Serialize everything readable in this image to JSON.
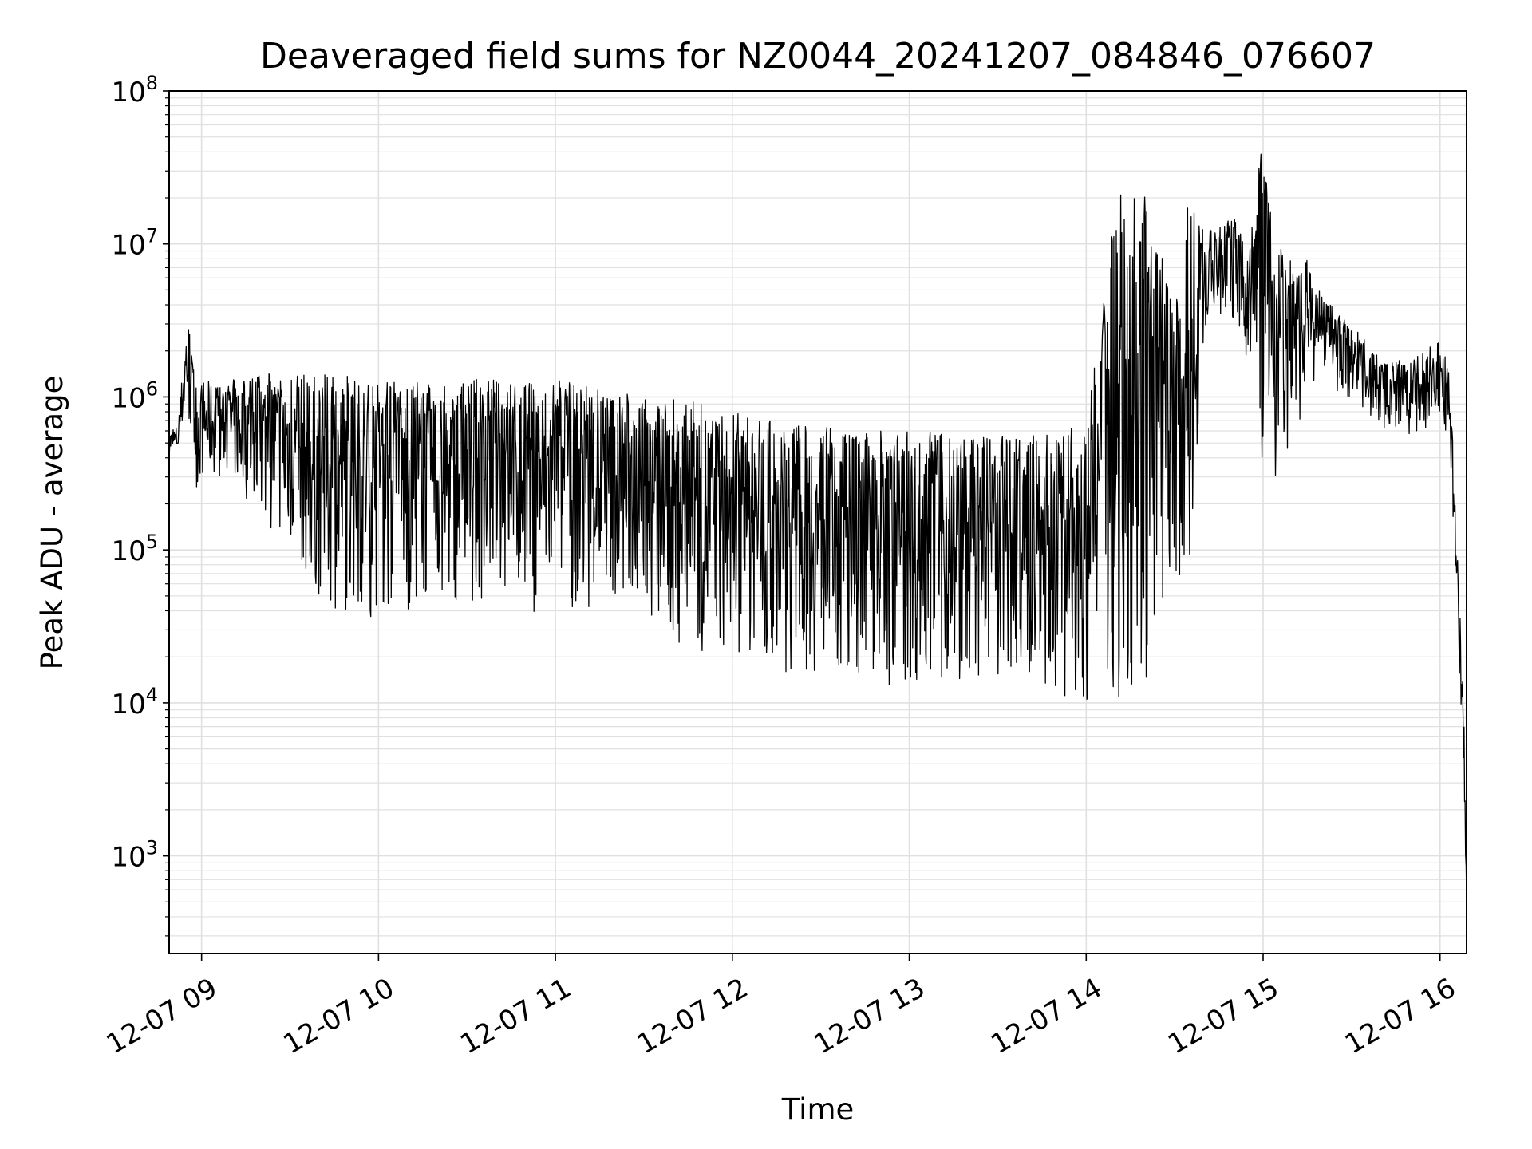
{
  "chart_data": {
    "type": "line",
    "title": "Deaveraged field sums for NZ0044_20241207_084846_076607",
    "xlabel": "Time",
    "ylabel": "Peak ADU - average",
    "yscale": "log",
    "xlim": [
      "2024-12-07T08:49:00",
      "2024-12-07T16:09:00"
    ],
    "ylim": [
      230,
      100000000
    ],
    "grid": true,
    "line_color": "#000000",
    "grid_color": "#e0e0e0",
    "x_ticks": [
      {
        "value": "2024-12-07T09:00:00",
        "label": "12-07 09"
      },
      {
        "value": "2024-12-07T10:00:00",
        "label": "12-07 10"
      },
      {
        "value": "2024-12-07T11:00:00",
        "label": "12-07 11"
      },
      {
        "value": "2024-12-07T12:00:00",
        "label": "12-07 12"
      },
      {
        "value": "2024-12-07T13:00:00",
        "label": "12-07 13"
      },
      {
        "value": "2024-12-07T14:00:00",
        "label": "12-07 14"
      },
      {
        "value": "2024-12-07T15:00:00",
        "label": "12-07 15"
      },
      {
        "value": "2024-12-07T16:00:00",
        "label": "12-07 16"
      }
    ],
    "y_ticks": [
      {
        "value": 1000,
        "base": "10",
        "exp": "3"
      },
      {
        "value": 10000,
        "base": "10",
        "exp": "4"
      },
      {
        "value": 100000,
        "base": "10",
        "exp": "5"
      },
      {
        "value": 1000000,
        "base": "10",
        "exp": "6"
      },
      {
        "value": 10000000,
        "base": "10",
        "exp": "7"
      },
      {
        "value": 100000000,
        "base": "10",
        "exp": "8"
      }
    ],
    "series": [
      {
        "x": [
          "08:49",
          "08:52",
          "08:55",
          "08:58",
          "09:01",
          "09:05",
          "09:10",
          "09:20",
          "09:30",
          "09:40",
          "09:50",
          "10:00",
          "10:10",
          "10:20",
          "10:30",
          "10:40",
          "10:50",
          "11:00",
          "11:10",
          "11:20",
          "11:30",
          "11:40",
          "11:50",
          "12:00",
          "12:10",
          "12:20",
          "12:30",
          "12:40",
          "12:50",
          "13:00",
          "13:10",
          "13:20",
          "13:30",
          "13:40",
          "13:50",
          "14:00",
          "14:10",
          "14:20",
          "14:30",
          "14:35",
          "14:40",
          "14:45",
          "14:50",
          "14:55",
          "15:00",
          "15:05",
          "15:10",
          "15:15",
          "15:20",
          "15:30",
          "15:40",
          "15:50",
          "16:00",
          "16:03",
          "16:05",
          "16:07",
          "16:08",
          "16:09"
        ],
        "high": [
          600000,
          650000,
          3500000,
          1300000,
          1300000,
          1200000,
          1300000,
          1500000,
          1500000,
          1400000,
          1400000,
          1300000,
          1300000,
          1200000,
          1300000,
          1300000,
          1300000,
          1300000,
          1200000,
          1200000,
          1000000,
          1000000,
          900000,
          800000,
          700000,
          700000,
          650000,
          600000,
          650000,
          600000,
          600000,
          550000,
          550000,
          600000,
          650000,
          600000,
          20000000,
          26000000,
          3500000,
          23000000,
          12000000,
          13000000,
          15000000,
          9000000,
          60000000,
          9500000,
          9000000,
          8000000,
          4500000,
          3000000,
          1800000,
          1700000,
          2500000,
          1500000,
          300000,
          30000,
          13000,
          900
        ],
        "low": [
          400000,
          420000,
          800000,
          250000,
          300000,
          300000,
          280000,
          150000,
          100000,
          45000,
          38000,
          35000,
          35000,
          40000,
          45000,
          50000,
          40000,
          38000,
          40000,
          45000,
          35000,
          25000,
          20000,
          18000,
          16000,
          16000,
          15000,
          14000,
          13000,
          13000,
          13000,
          13000,
          13000,
          12000,
          11000,
          10000,
          10500,
          11000,
          60000,
          50000,
          2500000,
          3500000,
          3000000,
          1500000,
          300000,
          300000,
          400000,
          1200000,
          1300000,
          900000,
          600000,
          500000,
          600000,
          500000,
          100000,
          10000,
          2000,
          450
        ]
      }
    ]
  }
}
